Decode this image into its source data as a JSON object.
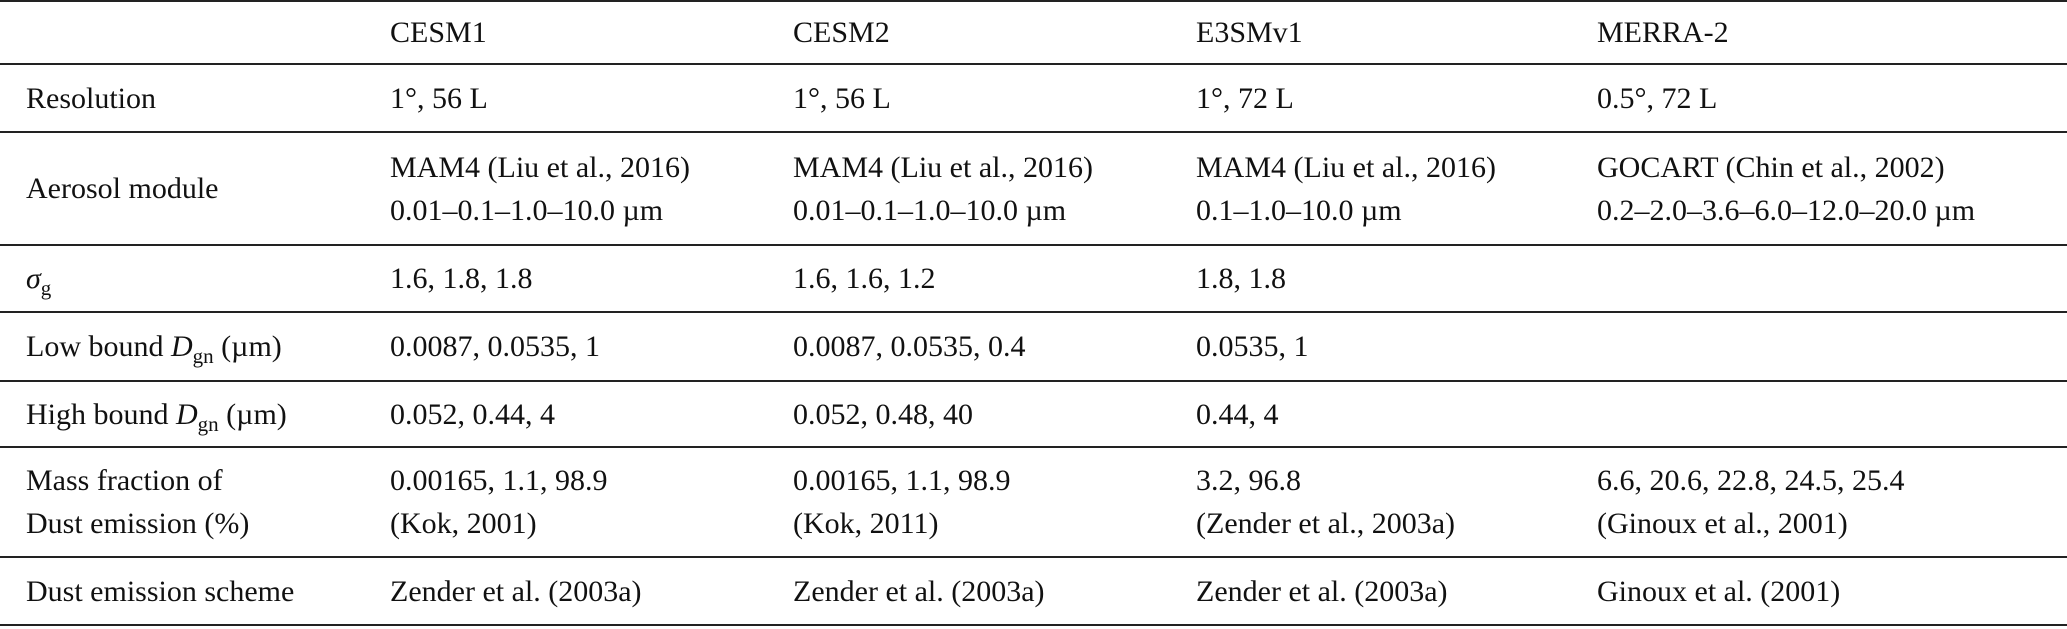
{
  "table": {
    "header": [
      "CESM1",
      "CESM2",
      "E3SMv1",
      "MERRA-2"
    ],
    "rows": [
      {
        "label": [
          "Resolution"
        ],
        "cells": [
          [
            "1°, 56 L"
          ],
          [
            "1°, 56 L"
          ],
          [
            "1°, 72 L"
          ],
          [
            "0.5°, 72 L"
          ]
        ]
      },
      {
        "label": [
          "Aerosol module"
        ],
        "cells": [
          [
            "MAM4 (Liu et al., 2016)",
            "0.01–0.1–1.0–10.0 µm"
          ],
          [
            "MAM4 (Liu et al., 2016)",
            "0.01–0.1–1.0–10.0 µm"
          ],
          [
            "MAM4 (Liu et al., 2016)",
            "0.1–1.0–10.0 µm"
          ],
          [
            "GOCART (Chin et al., 2002)",
            "0.2–2.0–3.6–6.0–12.0–20.0 µm"
          ]
        ]
      },
      {
        "label_rich": {
          "var": "σ",
          "sub": "g"
        },
        "cells": [
          [
            "1.6, 1.8, 1.8"
          ],
          [
            "1.6, 1.6, 1.2"
          ],
          [
            "1.8, 1.8"
          ],
          []
        ]
      },
      {
        "label_rich": {
          "before": "Low bound ",
          "var": "D",
          "sub": "gn",
          "after": " (µm)"
        },
        "cells": [
          [
            "0.0087, 0.0535, 1"
          ],
          [
            "0.0087, 0.0535, 0.4"
          ],
          [
            "0.0535, 1"
          ],
          []
        ]
      },
      {
        "label_rich": {
          "before": "High bound ",
          "var": "D",
          "sub": "gn",
          "after": " (µm)"
        },
        "cells": [
          [
            "0.052, 0.44, 4"
          ],
          [
            "0.052, 0.48, 40"
          ],
          [
            "0.44, 4"
          ],
          []
        ]
      },
      {
        "label": [
          "Mass fraction of",
          "Dust emission (%)"
        ],
        "cells": [
          [
            "0.00165, 1.1, 98.9",
            "(Kok, 2001)"
          ],
          [
            "0.00165, 1.1, 98.9",
            "(Kok, 2011)"
          ],
          [
            "3.2, 96.8",
            "(Zender et al., 2003a)"
          ],
          [
            "6.6, 20.6, 22.8, 24.5, 25.4",
            "(Ginoux et al., 2001)"
          ]
        ]
      },
      {
        "label": [
          "Dust emission scheme"
        ],
        "cells": [
          [
            "Zender et al. (2003a)"
          ],
          [
            "Zender et al. (2003a)"
          ],
          [
            "Zender et al. (2003a)"
          ],
          [
            "Ginoux et al. (2001)"
          ]
        ]
      }
    ]
  }
}
